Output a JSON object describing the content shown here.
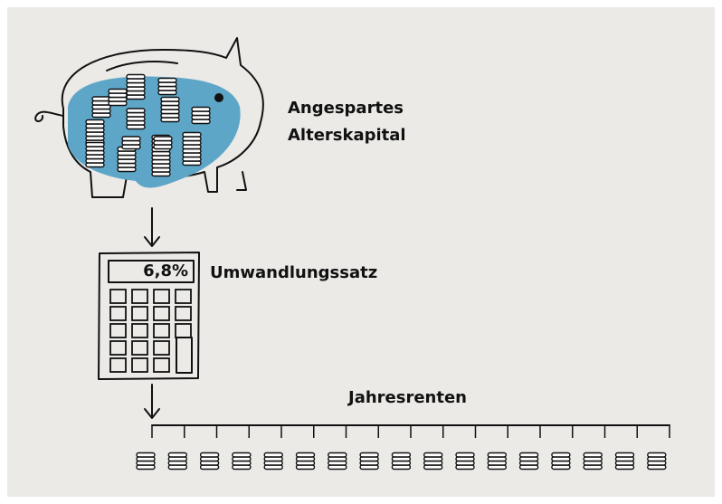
{
  "piggy_bank": {
    "label_lines": [
      "Angespartes",
      "Alterskapital"
    ]
  },
  "calculator": {
    "display": "6,8%",
    "label": "Umwandlungssatz"
  },
  "timeline": {
    "label": "Jahresrenten"
  }
}
